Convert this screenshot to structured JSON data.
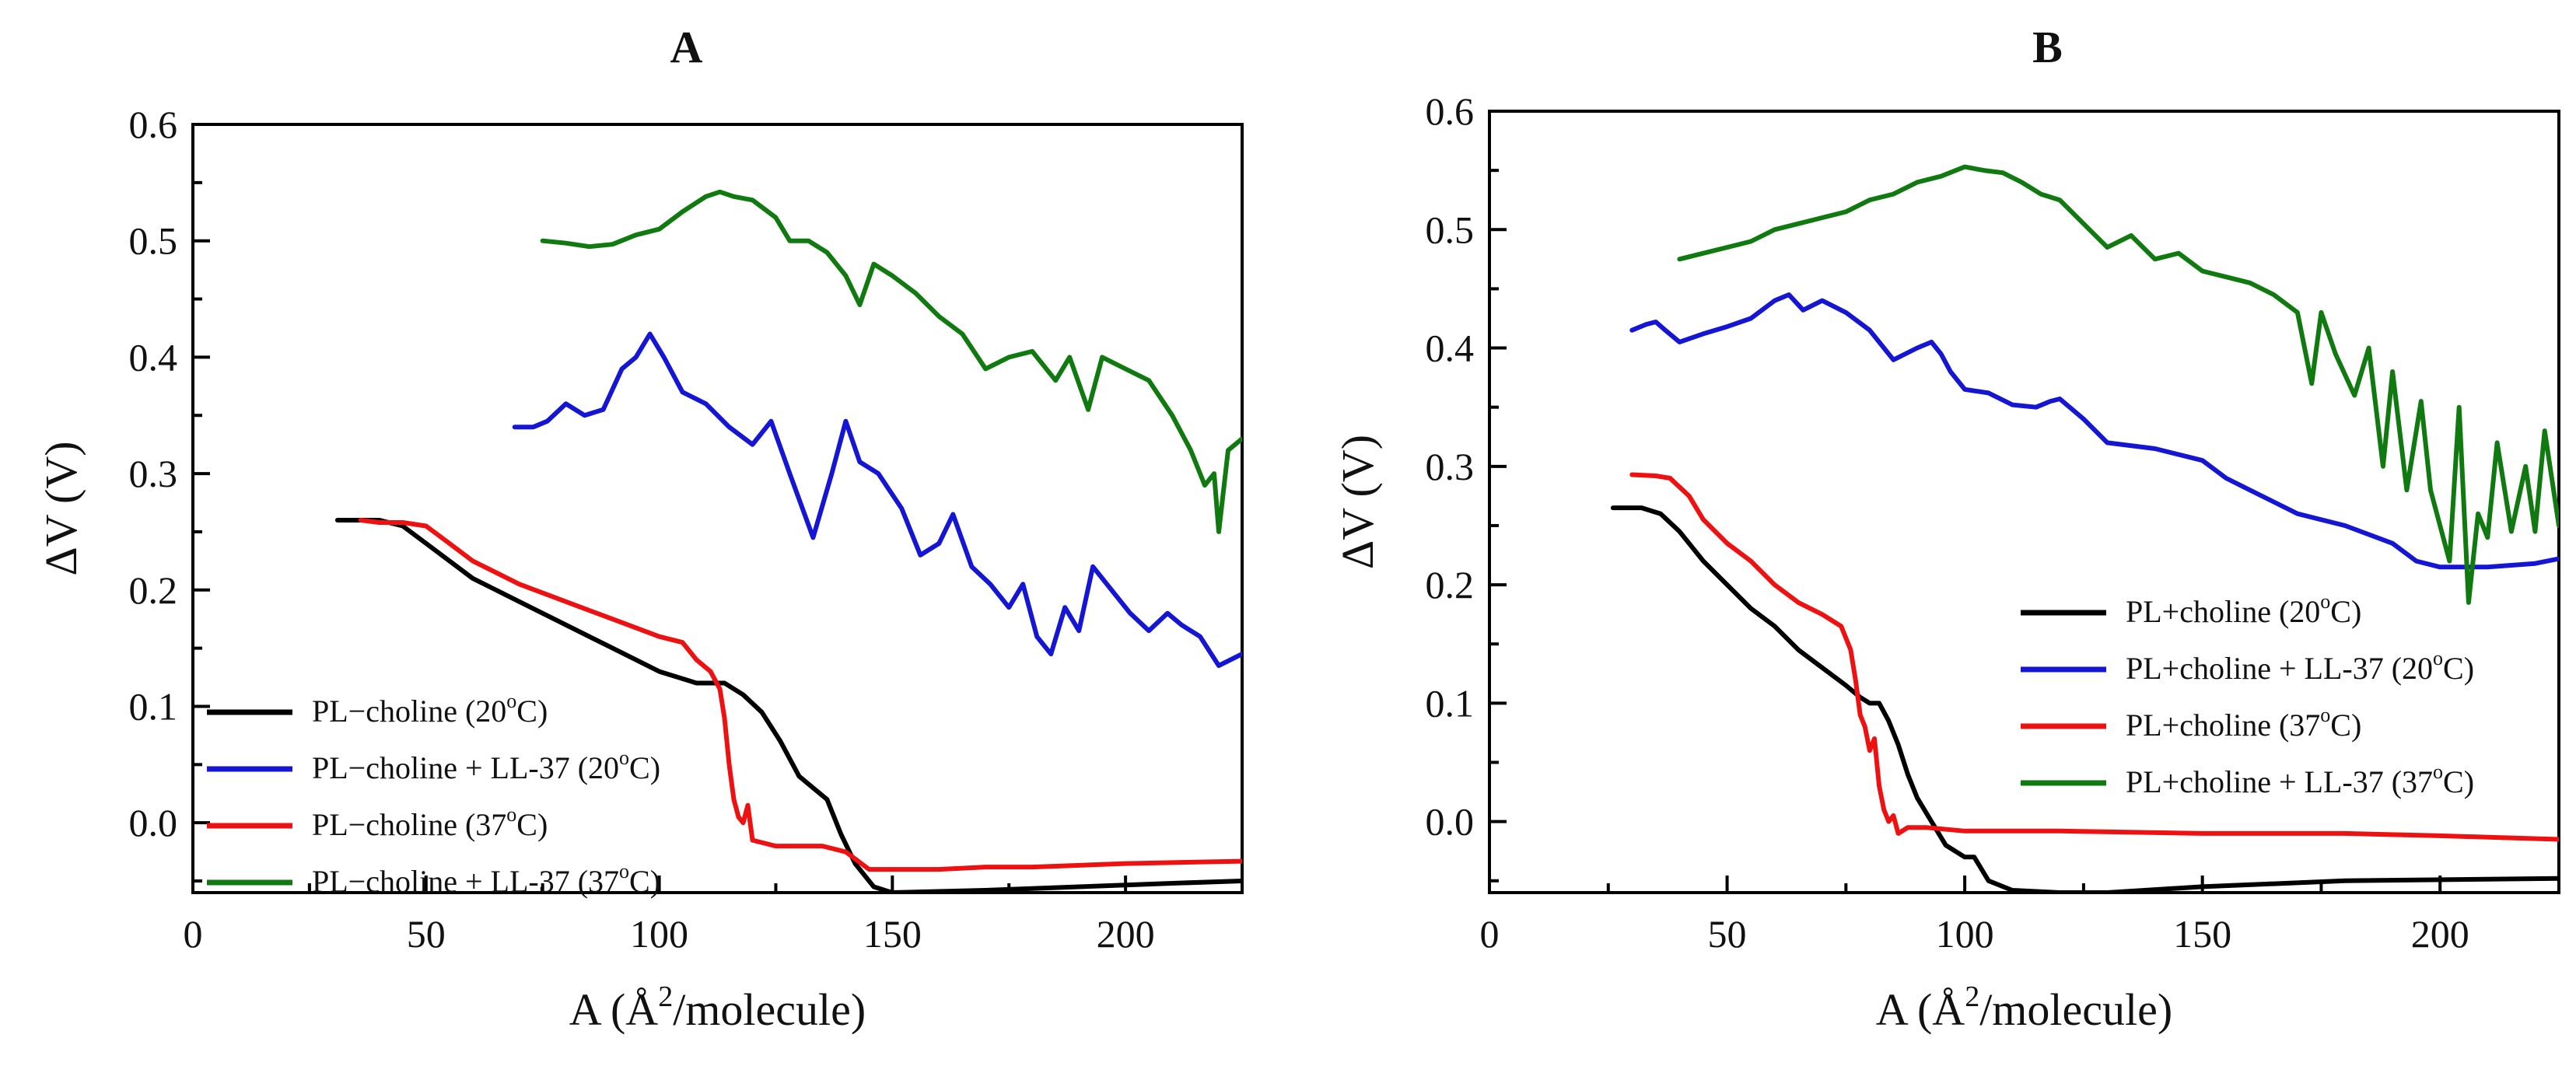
{
  "chart_data": [
    {
      "type": "line",
      "title": "A",
      "xlabel_prefix": "A (Å",
      "xlabel_sup": "2",
      "xlabel_suffix": "/molecule)",
      "ylabel": "ΔV (V)",
      "xlim": [
        0,
        225
      ],
      "ylim": [
        -0.06,
        0.6
      ],
      "xticks": [
        0,
        50,
        100,
        150,
        200
      ],
      "xtick_labels": [
        "0",
        "50",
        "100",
        "150",
        "200"
      ],
      "yticks": [
        0.0,
        0.1,
        0.2,
        0.3,
        0.4,
        0.5,
        0.6
      ],
      "ytick_labels": [
        "0.0",
        "0.1",
        "0.2",
        "0.3",
        "0.4",
        "0.5",
        "0.6"
      ],
      "legend_position": "bottom-left",
      "series": [
        {
          "name": "PL−choline (20°C)",
          "label_main": "PL−choline (20",
          "label_sup": "o",
          "label_end": "C)",
          "color": "#000000",
          "x": [
            31,
            40,
            45,
            50,
            60,
            70,
            80,
            90,
            100,
            108,
            114,
            118,
            122,
            126,
            130,
            133,
            136,
            139,
            142,
            146,
            150,
            170,
            190,
            210,
            225
          ],
          "y": [
            0.26,
            0.26,
            0.255,
            0.24,
            0.21,
            0.19,
            0.17,
            0.15,
            0.13,
            0.12,
            0.12,
            0.11,
            0.095,
            0.07,
            0.04,
            0.03,
            0.02,
            -0.01,
            -0.035,
            -0.055,
            -0.06,
            -0.058,
            -0.055,
            -0.052,
            -0.05
          ]
        },
        {
          "name": "PL−choline + LL-37 (20°C)",
          "label_main": "PL−choline + LL-37 (20",
          "label_sup": "o",
          "label_end": "C)",
          "color": "#1515d4",
          "x": [
            69,
            73,
            76,
            80,
            84,
            88,
            92,
            95,
            98,
            101,
            105,
            110,
            115,
            120,
            124,
            128,
            133,
            137,
            140,
            143,
            147,
            152,
            156,
            160,
            163,
            167,
            171,
            175,
            178,
            181,
            184,
            187,
            190,
            193,
            197,
            201,
            205,
            209,
            212,
            216,
            220,
            225
          ],
          "y": [
            0.34,
            0.34,
            0.345,
            0.36,
            0.35,
            0.355,
            0.39,
            0.4,
            0.42,
            0.4,
            0.37,
            0.36,
            0.34,
            0.325,
            0.345,
            0.3,
            0.245,
            0.3,
            0.345,
            0.31,
            0.3,
            0.27,
            0.23,
            0.24,
            0.265,
            0.22,
            0.205,
            0.185,
            0.205,
            0.16,
            0.145,
            0.185,
            0.165,
            0.22,
            0.2,
            0.18,
            0.165,
            0.18,
            0.17,
            0.16,
            0.135,
            0.145
          ]
        },
        {
          "name": "PL−choline (37°C)",
          "label_main": "PL−choline (37",
          "label_sup": "o",
          "label_end": "C)",
          "color": "#ee1111",
          "x": [
            36,
            40,
            45,
            50,
            55,
            60,
            70,
            80,
            90,
            100,
            105,
            108,
            111,
            113,
            114,
            115,
            116,
            117,
            118,
            119,
            120,
            125,
            130,
            135,
            140,
            145,
            150,
            160,
            170,
            180,
            200,
            225
          ],
          "y": [
            0.26,
            0.258,
            0.258,
            0.255,
            0.24,
            0.225,
            0.205,
            0.19,
            0.175,
            0.16,
            0.155,
            0.14,
            0.13,
            0.115,
            0.09,
            0.05,
            0.02,
            0.005,
            0.0,
            0.015,
            -0.015,
            -0.02,
            -0.02,
            -0.02,
            -0.025,
            -0.04,
            -0.04,
            -0.04,
            -0.038,
            -0.038,
            -0.035,
            -0.033
          ]
        },
        {
          "name": "PL−choline + LL-37 (37°C)",
          "label_main": "PL−choline + LL-37 (37",
          "label_sup": "o",
          "label_end": "C)",
          "color": "#107a10",
          "x": [
            75,
            80,
            85,
            90,
            95,
            100,
            105,
            110,
            113,
            116,
            120,
            125,
            128,
            132,
            136,
            140,
            143,
            146,
            150,
            155,
            160,
            165,
            170,
            175,
            180,
            185,
            188,
            192,
            195,
            200,
            205,
            210,
            214,
            217,
            219,
            220,
            222,
            225
          ],
          "y": [
            0.5,
            0.498,
            0.495,
            0.497,
            0.505,
            0.51,
            0.525,
            0.538,
            0.542,
            0.538,
            0.535,
            0.52,
            0.5,
            0.5,
            0.49,
            0.47,
            0.445,
            0.48,
            0.47,
            0.455,
            0.435,
            0.42,
            0.39,
            0.4,
            0.405,
            0.38,
            0.4,
            0.355,
            0.4,
            0.39,
            0.38,
            0.35,
            0.32,
            0.29,
            0.3,
            0.25,
            0.32,
            0.33
          ]
        }
      ]
    },
    {
      "type": "line",
      "title": "B",
      "xlabel_prefix": "A (Å",
      "xlabel_sup": "2",
      "xlabel_suffix": "/molecule)",
      "ylabel": "ΔV (V)",
      "xlim": [
        0,
        225
      ],
      "ylim": [
        -0.06,
        0.6
      ],
      "xticks": [
        0,
        50,
        100,
        150,
        200
      ],
      "xtick_labels": [
        "0",
        "50",
        "100",
        "150",
        "200"
      ],
      "yticks": [
        0.0,
        0.1,
        0.2,
        0.3,
        0.4,
        0.5,
        0.6
      ],
      "ytick_labels": [
        "0.0",
        "0.1",
        "0.2",
        "0.3",
        "0.4",
        "0.5",
        "0.6"
      ],
      "legend_position": "center-right",
      "series": [
        {
          "name": "PL+choline (20°C)",
          "label_main": "PL+choline (20",
          "label_sup": "o",
          "label_end": "C)",
          "color": "#000000",
          "x": [
            26,
            32,
            36,
            40,
            45,
            50,
            55,
            60,
            65,
            70,
            75,
            78,
            80,
            82,
            84,
            86,
            88,
            90,
            93,
            96,
            100,
            102,
            105,
            110,
            120,
            130,
            150,
            180,
            225
          ],
          "y": [
            0.265,
            0.265,
            0.26,
            0.245,
            0.22,
            0.2,
            0.18,
            0.165,
            0.145,
            0.13,
            0.115,
            0.105,
            0.1,
            0.1,
            0.085,
            0.065,
            0.04,
            0.02,
            0.0,
            -0.02,
            -0.03,
            -0.03,
            -0.05,
            -0.058,
            -0.06,
            -0.06,
            -0.055,
            -0.05,
            -0.048
          ]
        },
        {
          "name": "PL+choline + LL-37 (20°C)",
          "label_main": "PL+choline + LL-37 (20",
          "label_sup": "o",
          "label_end": "C)",
          "color": "#1515d4",
          "x": [
            30,
            33,
            35,
            37,
            40,
            45,
            50,
            55,
            60,
            63,
            66,
            70,
            72,
            75,
            80,
            85,
            90,
            93,
            95,
            97,
            100,
            105,
            110,
            115,
            118,
            120,
            125,
            130,
            140,
            150,
            155,
            160,
            170,
            180,
            190,
            195,
            200,
            210,
            220,
            225
          ],
          "y": [
            0.415,
            0.42,
            0.422,
            0.415,
            0.405,
            0.412,
            0.418,
            0.425,
            0.44,
            0.445,
            0.432,
            0.44,
            0.436,
            0.43,
            0.415,
            0.39,
            0.4,
            0.405,
            0.395,
            0.38,
            0.365,
            0.362,
            0.352,
            0.35,
            0.355,
            0.357,
            0.34,
            0.32,
            0.315,
            0.305,
            0.29,
            0.28,
            0.26,
            0.25,
            0.235,
            0.22,
            0.215,
            0.215,
            0.218,
            0.222
          ]
        },
        {
          "name": "PL+choline (37°C)",
          "label_main": "PL+choline (37",
          "label_sup": "o",
          "label_end": "C)",
          "color": "#ee1111",
          "x": [
            30,
            35,
            38,
            42,
            45,
            50,
            55,
            60,
            65,
            70,
            74,
            76,
            77,
            78,
            79,
            80,
            81,
            82,
            83,
            84,
            85,
            86,
            88,
            92,
            100,
            120,
            150,
            180,
            200,
            225
          ],
          "y": [
            0.293,
            0.292,
            0.29,
            0.275,
            0.255,
            0.235,
            0.22,
            0.2,
            0.185,
            0.175,
            0.165,
            0.145,
            0.12,
            0.09,
            0.08,
            0.06,
            0.07,
            0.03,
            0.01,
            0.0,
            0.005,
            -0.01,
            -0.005,
            -0.005,
            -0.008,
            -0.008,
            -0.01,
            -0.01,
            -0.012,
            -0.015
          ]
        },
        {
          "name": "PL+choline + LL-37 (37°C)",
          "label_main": "PL+choline + LL-37 (37",
          "label_sup": "o",
          "label_end": "C)",
          "color": "#107a10",
          "x": [
            40,
            45,
            50,
            55,
            60,
            65,
            70,
            75,
            80,
            85,
            90,
            95,
            100,
            104,
            108,
            112,
            116,
            120,
            125,
            130,
            135,
            140,
            145,
            150,
            155,
            160,
            165,
            170,
            173,
            175,
            178,
            182,
            185,
            188,
            190,
            193,
            196,
            198,
            200,
            202,
            204,
            206,
            208,
            210,
            212,
            215,
            218,
            220,
            222,
            225
          ],
          "y": [
            0.475,
            0.48,
            0.485,
            0.49,
            0.5,
            0.505,
            0.51,
            0.515,
            0.525,
            0.53,
            0.54,
            0.545,
            0.553,
            0.55,
            0.548,
            0.54,
            0.53,
            0.525,
            0.505,
            0.485,
            0.495,
            0.475,
            0.48,
            0.465,
            0.46,
            0.455,
            0.445,
            0.43,
            0.37,
            0.43,
            0.395,
            0.36,
            0.4,
            0.3,
            0.38,
            0.28,
            0.355,
            0.28,
            0.25,
            0.22,
            0.35,
            0.185,
            0.26,
            0.24,
            0.32,
            0.245,
            0.3,
            0.245,
            0.33,
            0.25
          ]
        }
      ]
    }
  ]
}
